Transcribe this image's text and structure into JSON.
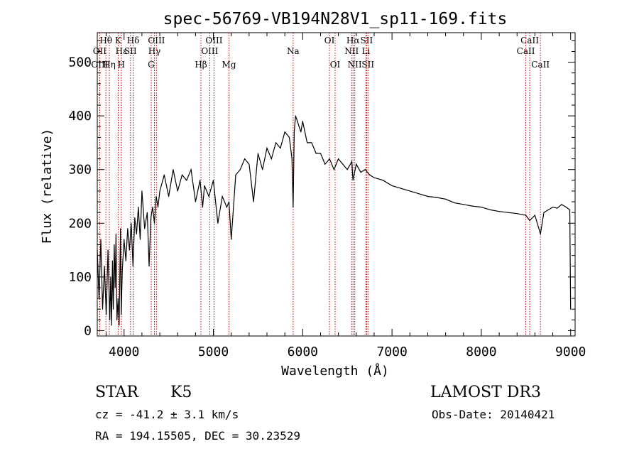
{
  "chart_data": {
    "type": "line",
    "title": "spec-56769-VB194N28V1_sp11-169.fits",
    "xlabel": "Wavelength (Å)",
    "ylabel": "Flux (relative)",
    "xlim": [
      3700,
      9050
    ],
    "ylim": [
      -10,
      555
    ],
    "x_ticks": [
      4000,
      5000,
      6000,
      7000,
      8000,
      9000
    ],
    "y_ticks": [
      0,
      100,
      200,
      300,
      400,
      500
    ],
    "spectrum": {
      "x": [
        3700,
        3720,
        3740,
        3760,
        3780,
        3800,
        3820,
        3840,
        3850,
        3860,
        3870,
        3880,
        3890,
        3900,
        3910,
        3920,
        3933,
        3945,
        3960,
        3968,
        3980,
        4000,
        4020,
        4040,
        4060,
        4080,
        4100,
        4120,
        4140,
        4160,
        4180,
        4200,
        4230,
        4260,
        4280,
        4300,
        4320,
        4340,
        4360,
        4380,
        4400,
        4450,
        4500,
        4550,
        4600,
        4650,
        4700,
        4750,
        4800,
        4850,
        4880,
        4900,
        4950,
        5000,
        5050,
        5100,
        5150,
        5175,
        5200,
        5250,
        5300,
        5350,
        5400,
        5450,
        5500,
        5550,
        5600,
        5650,
        5700,
        5750,
        5800,
        5850,
        5880,
        5893,
        5905,
        5920,
        5940,
        5960,
        5980,
        6000,
        6050,
        6100,
        6150,
        6200,
        6250,
        6300,
        6350,
        6400,
        6450,
        6500,
        6550,
        6563,
        6600,
        6650,
        6700,
        6750,
        6800,
        6900,
        7000,
        7100,
        7200,
        7300,
        7400,
        7500,
        7600,
        7700,
        7800,
        7900,
        8000,
        8100,
        8200,
        8300,
        8400,
        8498,
        8542,
        8600,
        8662,
        8700,
        8750,
        8800,
        8850,
        8900,
        8950,
        8990,
        9000
      ],
      "y": [
        150,
        60,
        170,
        40,
        120,
        30,
        150,
        20,
        100,
        10,
        130,
        40,
        160,
        80,
        180,
        20,
        60,
        10,
        190,
        30,
        110,
        170,
        130,
        190,
        150,
        200,
        120,
        210,
        180,
        230,
        170,
        260,
        190,
        220,
        120,
        210,
        230,
        200,
        250,
        230,
        260,
        290,
        250,
        300,
        260,
        290,
        280,
        300,
        240,
        280,
        230,
        270,
        250,
        280,
        200,
        250,
        230,
        240,
        170,
        290,
        300,
        320,
        310,
        240,
        330,
        300,
        340,
        320,
        350,
        340,
        370,
        360,
        320,
        230,
        370,
        400,
        390,
        380,
        370,
        390,
        350,
        350,
        330,
        330,
        310,
        320,
        300,
        320,
        310,
        300,
        315,
        280,
        310,
        295,
        300,
        290,
        285,
        280,
        270,
        265,
        260,
        255,
        250,
        248,
        245,
        238,
        235,
        232,
        230,
        225,
        222,
        220,
        218,
        215,
        205,
        215,
        180,
        220,
        225,
        230,
        228,
        235,
        230,
        225,
        40
      ]
    },
    "lines": [
      {
        "label": "Hθ",
        "x": 3797,
        "row": 1
      },
      {
        "label": "OII",
        "x": 3727,
        "row": 2
      },
      {
        "label": "OIII",
        "x": 3727,
        "row": 3
      },
      {
        "label": "K",
        "x": 3934,
        "row": 1
      },
      {
        "label": "H",
        "x": 3969,
        "row": 3
      },
      {
        "label": "Hη",
        "x": 3835,
        "row": 3
      },
      {
        "label": "Hε",
        "x": 3970,
        "row": 2
      },
      {
        "label": "SII",
        "x": 4072,
        "row": 2
      },
      {
        "label": "Hδ",
        "x": 4102,
        "row": 1
      },
      {
        "label": "OIII",
        "x": 4363,
        "row": 1
      },
      {
        "label": "Hγ",
        "x": 4340,
        "row": 2
      },
      {
        "label": "G",
        "x": 4304,
        "row": 3
      },
      {
        "label": "Hβ",
        "x": 4861,
        "row": 3
      },
      {
        "label": "OIII",
        "x": 4959,
        "row": 2
      },
      {
        "label": "OIII",
        "x": 5007,
        "row": 1
      },
      {
        "label": "Mg",
        "x": 5175,
        "row": 3
      },
      {
        "label": "Na",
        "x": 5893,
        "row": 2
      },
      {
        "label": "OI",
        "x": 6300,
        "row": 1
      },
      {
        "label": "OI",
        "x": 6363,
        "row": 3
      },
      {
        "label": "NII",
        "x": 6548,
        "row": 2
      },
      {
        "label": "Hα",
        "x": 6563,
        "row": 1
      },
      {
        "label": "NII",
        "x": 6583,
        "row": 3
      },
      {
        "label": "Li",
        "x": 6708,
        "row": 2
      },
      {
        "label": "SII",
        "x": 6716,
        "row": 1
      },
      {
        "label": "SII",
        "x": 6731,
        "row": 3
      },
      {
        "label": "CaII",
        "x": 8542,
        "row": 1
      },
      {
        "label": "CaII",
        "x": 8498,
        "row": 2
      },
      {
        "label": "CaII",
        "x": 8662,
        "row": 3
      }
    ]
  },
  "info": {
    "class": "STAR",
    "subclass": "K5",
    "survey": "LAMOST DR3",
    "cz": "cz = -41.2 ± 3.1 km/s",
    "obs_date": "Obs-Date: 20140421",
    "coords": "RA = 194.15505, DEC =  30.23529"
  },
  "colors": {
    "spectrum": "#000000",
    "lines": "#cc0000",
    "axes": "#000000"
  }
}
